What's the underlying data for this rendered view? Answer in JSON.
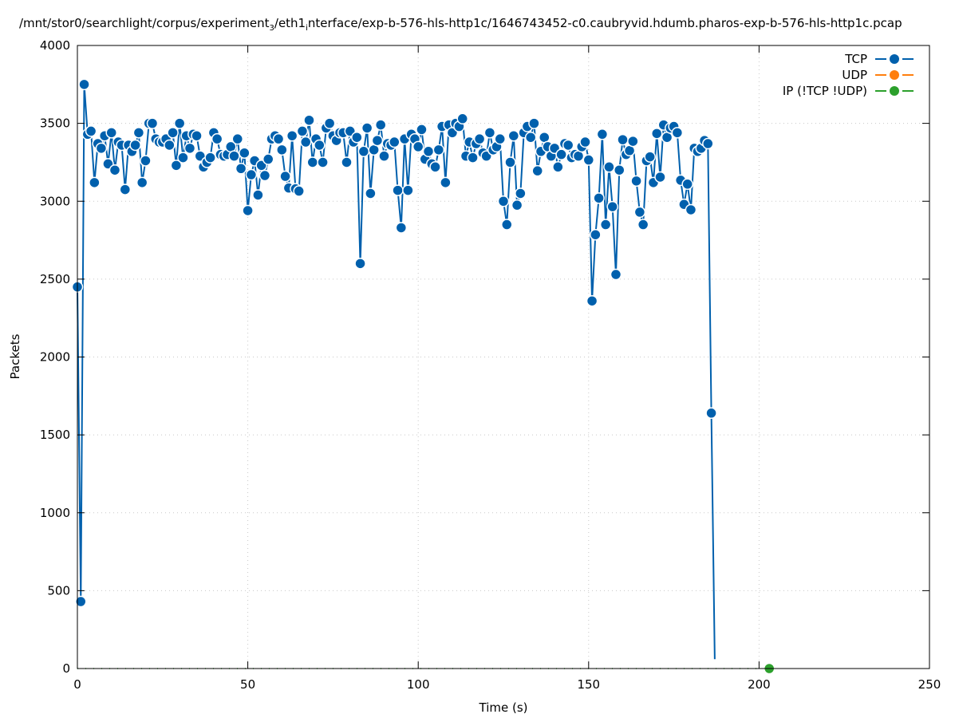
{
  "chart_data": {
    "type": "line",
    "title_parts": [
      "/mnt/stor0/searchlight/corpus/experiment",
      "3",
      "/eth1",
      "i",
      "nterface/exp-b-576-hls-http1c/1646743452-c0.caubryvid.hdumb.pharos-exp-b-576-hls-http1c.pcap"
    ],
    "xlabel": "Time (s)",
    "ylabel": "Packets",
    "xlim": [
      0,
      250
    ],
    "ylim": [
      0,
      4000
    ],
    "xticks": [
      0,
      50,
      100,
      150,
      200,
      250
    ],
    "yticks": [
      0,
      500,
      1000,
      1500,
      2000,
      2500,
      3000,
      3500,
      4000
    ],
    "grid": true,
    "legend_placement": "top-right",
    "series": [
      {
        "name": "TCP",
        "color": "#0060ad",
        "x": [
          0,
          1,
          2,
          3,
          4,
          5,
          6,
          7,
          8,
          9,
          10,
          11,
          12,
          13,
          14,
          15,
          16,
          17,
          18,
          19,
          20,
          21,
          22,
          23,
          24,
          25,
          26,
          27,
          28,
          29,
          30,
          31,
          32,
          33,
          34,
          35,
          36,
          37,
          38,
          39,
          40,
          41,
          42,
          43,
          44,
          45,
          46,
          47,
          48,
          49,
          50,
          51,
          52,
          53,
          54,
          55,
          56,
          57,
          58,
          59,
          60,
          61,
          62,
          63,
          64,
          65,
          66,
          67,
          68,
          69,
          70,
          71,
          72,
          73,
          74,
          75,
          76,
          77,
          78,
          79,
          80,
          81,
          82,
          83,
          84,
          85,
          86,
          87,
          88,
          89,
          90,
          91,
          92,
          93,
          94,
          95,
          96,
          97,
          98,
          99,
          100,
          101,
          102,
          103,
          104,
          105,
          106,
          107,
          108,
          109,
          110,
          111,
          112,
          113,
          114,
          115,
          116,
          117,
          118,
          119,
          120,
          121,
          122,
          123,
          124,
          125,
          126,
          127,
          128,
          129,
          130,
          131,
          132,
          133,
          134,
          135,
          136,
          137,
          138,
          139,
          140,
          141,
          142,
          143,
          144,
          145,
          146,
          147,
          148,
          149,
          150,
          151,
          152,
          153,
          154,
          155,
          156,
          157,
          158,
          159,
          160,
          161,
          162,
          163,
          164,
          165,
          166,
          167,
          168,
          169,
          170,
          171,
          172,
          173,
          174,
          175,
          176,
          177,
          178,
          179,
          180,
          181,
          182,
          183,
          184,
          185,
          186,
          187
        ],
        "y": [
          2450,
          430,
          3750,
          3430,
          3450,
          3120,
          3370,
          3340,
          3420,
          3240,
          3440,
          3200,
          3380,
          3360,
          3075,
          3360,
          3320,
          3360,
          3440,
          3120,
          3260,
          3500,
          3500,
          3400,
          3380,
          3380,
          3400,
          3360,
          3440,
          3230,
          3500,
          3280,
          3420,
          3340,
          3430,
          3420,
          3290,
          3220,
          3250,
          3280,
          3440,
          3400,
          3300,
          3290,
          3300,
          3350,
          3290,
          3400,
          3210,
          3310,
          2940,
          3170,
          3260,
          3040,
          3230,
          3165,
          3270,
          3400,
          3420,
          3400,
          3330,
          3160,
          3085,
          3420,
          3080,
          3065,
          3450,
          3380,
          3520,
          3250,
          3400,
          3360,
          3250,
          3470,
          3500,
          3420,
          3390,
          3440,
          3440,
          3250,
          3450,
          3380,
          3410,
          2600,
          3320,
          3470,
          3050,
          3330,
          3390,
          3490,
          3290,
          3370,
          3360,
          3380,
          3070,
          2830,
          3400,
          3070,
          3430,
          3400,
          3350,
          3460,
          3270,
          3320,
          3240,
          3220,
          3330,
          3480,
          3120,
          3490,
          3440,
          3500,
          3480,
          3530,
          3290,
          3380,
          3280,
          3370,
          3400,
          3310,
          3290,
          3440,
          3330,
          3350,
          3400,
          3000,
          2850,
          3250,
          3420,
          2975,
          3050,
          3440,
          3480,
          3410,
          3500,
          3195,
          3320,
          3410,
          3350,
          3290,
          3340,
          3220,
          3300,
          3370,
          3360,
          3280,
          3300,
          3290,
          3350,
          3380,
          3265,
          2360,
          2785,
          3020,
          3430,
          2850,
          3220,
          2965,
          2530,
          3200,
          3395,
          3300,
          3325,
          3385,
          3130,
          2930,
          2850,
          3260,
          3285,
          3120,
          3435,
          3155,
          3490,
          3410,
          3470,
          3480,
          3440,
          3135,
          2980,
          3110,
          2945,
          3340,
          3320,
          3340,
          3390,
          3370,
          1640,
          60
        ]
      },
      {
        "name": "UDP",
        "color": "#ff7f0e",
        "x": [],
        "y": []
      },
      {
        "name": "IP (!TCP  !UDP)",
        "color": "#2ca02c",
        "x": [
          203
        ],
        "y": [
          0
        ]
      }
    ]
  }
}
